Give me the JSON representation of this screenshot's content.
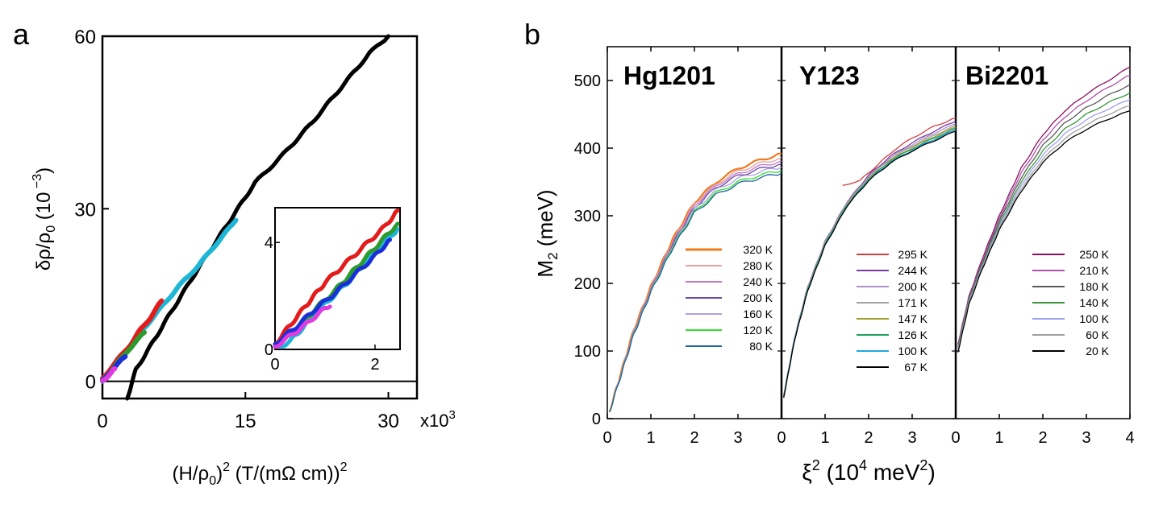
{
  "figure": {
    "panel_a_label": "a",
    "panel_b_label": "b"
  },
  "chart_data": [
    {
      "id": "a",
      "type": "scatter",
      "title": "",
      "xlabel_parts": {
        "pre": "(H/ρ",
        "sub": "0",
        "mid": ")",
        "sup": "2",
        "post": " (T/(mΩ cm))",
        "sup2": "2"
      },
      "ylabel_parts": {
        "pre": "δρ/ρ",
        "sub": "0",
        "post": " (10",
        "sup": " −3",
        "end": ")"
      },
      "x_multiplier": "x10",
      "x_multiplier_sup": "3",
      "xlim": [
        0,
        33
      ],
      "ylim": [
        -3,
        60
      ],
      "xticks": [
        0,
        15,
        30
      ],
      "xtick_labels": [
        "0",
        "15",
        "30"
      ],
      "yticks": [
        0,
        30,
        60
      ],
      "ytick_labels": [
        "0",
        "30",
        "60"
      ],
      "zero_line": 0,
      "series": [
        {
          "name": "black",
          "color": "#000000",
          "x": [
            2.6,
            3.5,
            5,
            7,
            10,
            13,
            16,
            19,
            22,
            25,
            28,
            30
          ],
          "y": [
            -3,
            2,
            6,
            11.5,
            19.5,
            27,
            34.5,
            39.5,
            45,
            51,
            57,
            60
          ]
        },
        {
          "name": "cyan",
          "color": "#1fb6d6",
          "x": [
            0,
            2,
            4,
            6,
            8,
            10,
            12,
            14
          ],
          "y": [
            0,
            4.5,
            8.5,
            12.5,
            16.5,
            20,
            24,
            28
          ]
        },
        {
          "name": "red",
          "color": "#e21b1b",
          "x": [
            0,
            1,
            2,
            3,
            4,
            5,
            6.2
          ],
          "y": [
            0.5,
            2.5,
            4.5,
            6.5,
            9,
            11,
            14
          ]
        },
        {
          "name": "green",
          "color": "#2d9a2d",
          "x": [
            0,
            1,
            2,
            3,
            4.4
          ],
          "y": [
            0.3,
            2,
            4,
            6,
            8.5
          ]
        },
        {
          "name": "blue",
          "color": "#1a2fd8",
          "x": [
            0,
            0.8,
            1.6,
            2.4
          ],
          "y": [
            0.2,
            1.6,
            3,
            4.3
          ]
        },
        {
          "name": "magenta",
          "color": "#e03ae0",
          "x": [
            0,
            0.5,
            1,
            1.3
          ],
          "y": [
            0.1,
            0.8,
            1.6,
            2.2
          ]
        }
      ],
      "inset": {
        "xlim": [
          0,
          2.5
        ],
        "ylim": [
          0,
          5.3
        ],
        "xticks": [
          0,
          2
        ],
        "xtick_labels": [
          "0",
          "2"
        ],
        "yticks": [
          0,
          4
        ],
        "ytick_labels": [
          "0",
          "4"
        ],
        "series": [
          {
            "name": "cyan",
            "color": "#1fb6d6",
            "x": [
              0.1,
              0.3,
              0.6,
              1.0,
              1.4,
              1.8,
              2.2,
              2.45
            ],
            "y": [
              0.1,
              0.3,
              0.9,
              1.7,
              2.4,
              3.2,
              4.0,
              4.5
            ]
          },
          {
            "name": "red",
            "color": "#e21b1b",
            "x": [
              0,
              0.3,
              0.6,
              1.0,
              1.4,
              1.8,
              2.2,
              2.45
            ],
            "y": [
              0.2,
              0.9,
              1.6,
              2.5,
              3.2,
              3.9,
              4.6,
              5.2
            ]
          },
          {
            "name": "green",
            "color": "#2d9a2d",
            "x": [
              0,
              0.4,
              0.8,
              1.2,
              1.6,
              2.0,
              2.45
            ],
            "y": [
              0.1,
              0.7,
              1.5,
              2.2,
              3.0,
              3.8,
              4.7
            ]
          },
          {
            "name": "blue",
            "color": "#1a2fd8",
            "x": [
              0,
              0.4,
              0.8,
              1.2,
              1.6,
              2.0,
              2.3
            ],
            "y": [
              0.2,
              0.8,
              1.5,
              2.1,
              2.8,
              3.5,
              4.1
            ]
          },
          {
            "name": "magenta",
            "color": "#e03ae0",
            "x": [
              0,
              0.3,
              0.6,
              0.9,
              1.1
            ],
            "y": [
              0.1,
              0.5,
              0.9,
              1.4,
              1.6
            ]
          }
        ]
      }
    },
    {
      "id": "b",
      "type": "line",
      "ylabel_parts": {
        "pre": "M",
        "sub": "2",
        "post": " (meV)"
      },
      "xlabel_parts": {
        "pre": "ξ",
        "sup": "2",
        "mid": " (10",
        "sup2": "4",
        "post": " meV",
        "sup3": "2",
        "end": ")"
      },
      "ylim": [
        0,
        550
      ],
      "yticks": [
        0,
        100,
        200,
        300,
        400,
        500
      ],
      "ytick_labels": [
        "0",
        "100",
        "200",
        "300",
        "400",
        "500"
      ],
      "xlim": [
        0,
        4
      ],
      "panels": [
        {
          "name": "Hg1201",
          "xticks": [
            0,
            1,
            2,
            3
          ],
          "xtick_labels": [
            "0",
            "1",
            "2",
            "3"
          ],
          "series": [
            {
              "name": "320 K",
              "color": "#f07a1e",
              "x": [
                0.05,
                0.3,
                0.6,
                1.0,
                1.5,
                2.0,
                2.5,
                3.0,
                3.5,
                4.0
              ],
              "y": [
                10,
                65,
                130,
                195,
                265,
                320,
                350,
                370,
                382,
                392
              ]
            },
            {
              "name": "280 K",
              "color": "#e6a0a0",
              "x": [
                0.05,
                0.3,
                0.6,
                1.0,
                1.5,
                2.0,
                2.5,
                3.0,
                3.5,
                4.0
              ],
              "y": [
                10,
                64,
                128,
                193,
                262,
                318,
                347,
                366,
                377,
                386
              ]
            },
            {
              "name": "240 K",
              "color": "#c478c4",
              "x": [
                0.05,
                0.3,
                0.6,
                1.0,
                1.5,
                2.0,
                2.5,
                3.0,
                3.5,
                4.0
              ],
              "y": [
                10,
                63,
                127,
                192,
                260,
                315,
                345,
                362,
                373,
                381
              ]
            },
            {
              "name": "200 K",
              "color": "#6a4aa8",
              "x": [
                0.05,
                0.3,
                0.6,
                1.0,
                1.5,
                2.0,
                2.5,
                3.0,
                3.5,
                4.0
              ],
              "y": [
                10,
                62,
                126,
                190,
                258,
                312,
                342,
                359,
                369,
                377
              ]
            },
            {
              "name": "160 K",
              "color": "#b0a0e0",
              "x": [
                0.05,
                0.3,
                0.6,
                1.0,
                1.5,
                2.0,
                2.5,
                3.0,
                3.5,
                4.0
              ],
              "y": [
                10,
                62,
                125,
                189,
                256,
                309,
                338,
                355,
                365,
                372
              ]
            },
            {
              "name": "120 K",
              "color": "#2ee02e",
              "x": [
                0.05,
                0.3,
                0.6,
                1.0,
                1.5,
                2.0,
                2.5,
                3.0,
                3.5,
                4.0
              ],
              "y": [
                10,
                61,
                124,
                188,
                254,
                306,
                334,
                350,
                360,
                367
              ]
            },
            {
              "name": "80 K",
              "color": "#2060a0",
              "x": [
                0.05,
                0.3,
                0.6,
                1.0,
                1.5,
                2.0,
                2.5,
                3.0,
                3.5,
                4.0
              ],
              "y": [
                10,
                61,
                123,
                187,
                252,
                304,
                331,
                347,
                356,
                363
              ]
            }
          ]
        },
        {
          "name": "Y123",
          "xticks": [
            0,
            1,
            2,
            3
          ],
          "xtick_labels": [
            "0",
            "1",
            "2",
            "3"
          ],
          "series": [
            {
              "name": "295 K",
              "color": "#d04040",
              "x": [
                1.4,
                1.8,
                2.2,
                2.6,
                3.0,
                3.5,
                4.0
              ],
              "y": [
                345,
                352,
                375,
                398,
                415,
                432,
                445
              ]
            },
            {
              "name": "244 K",
              "color": "#7a3aa0",
              "x": [
                0.05,
                0.3,
                0.6,
                1.0,
                1.5,
                2.0,
                2.5,
                3.0,
                3.5,
                4.0
              ],
              "y": [
                35,
                120,
                195,
                262,
                320,
                360,
                388,
                408,
                425,
                440
              ]
            },
            {
              "name": "200 K",
              "color": "#b090c8",
              "x": [
                0.05,
                0.3,
                0.6,
                1.0,
                1.5,
                2.0,
                2.5,
                3.0,
                3.5,
                4.0
              ],
              "y": [
                34,
                119,
                194,
                261,
                319,
                358,
                386,
                405,
                422,
                436
              ]
            },
            {
              "name": "171 K",
              "color": "#a0a0a0",
              "x": [
                0.05,
                0.3,
                0.6,
                1.0,
                1.5,
                2.0,
                2.5,
                3.0,
                3.5,
                4.0
              ],
              "y": [
                34,
                118,
                193,
                260,
                318,
                357,
                384,
                403,
                419,
                433
              ]
            },
            {
              "name": "147 K",
              "color": "#a0a030",
              "x": [
                0.05,
                0.3,
                0.6,
                1.0,
                1.5,
                2.0,
                2.5,
                3.0,
                3.5,
                4.0
              ],
              "y": [
                33,
                118,
                192,
                259,
                317,
                355,
                382,
                401,
                417,
                431
              ]
            },
            {
              "name": "126 K",
              "color": "#20a060",
              "x": [
                0.05,
                0.3,
                0.6,
                1.0,
                1.5,
                2.0,
                2.5,
                3.0,
                3.5,
                4.0
              ],
              "y": [
                33,
                117,
                191,
                258,
                316,
                354,
                381,
                399,
                415,
                429
              ]
            },
            {
              "name": "100 K",
              "color": "#20a8e0",
              "x": [
                0.05,
                0.3,
                0.6,
                1.0,
                1.5,
                2.0,
                2.5,
                3.0,
                3.5,
                4.0
              ],
              "y": [
                32,
                117,
                190,
                257,
                315,
                353,
                379,
                397,
                413,
                427
              ]
            },
            {
              "name": "67 K",
              "color": "#000000",
              "x": [
                0.05,
                0.3,
                0.6,
                1.0,
                1.5,
                2.0,
                2.5,
                3.0,
                3.5,
                4.0
              ],
              "y": [
                31,
                116,
                189,
                256,
                314,
                352,
                378,
                396,
                411,
                425
              ]
            }
          ]
        },
        {
          "name": "Bi2201",
          "xticks": [
            0,
            1,
            2,
            3,
            4
          ],
          "xtick_labels": [
            "0",
            "1",
            "2",
            "3",
            "4"
          ],
          "series": [
            {
              "name": "250 K",
              "color": "#8a1060",
              "x": [
                0.05,
                0.3,
                0.6,
                1.0,
                1.5,
                2.0,
                2.5,
                3.0,
                3.5,
                4.0
              ],
              "y": [
                110,
                180,
                235,
                300,
                370,
                420,
                455,
                480,
                500,
                520
              ]
            },
            {
              "name": "210 K",
              "color": "#b050a8",
              "x": [
                0.05,
                0.3,
                0.6,
                1.0,
                1.5,
                2.0,
                2.5,
                3.0,
                3.5,
                4.0
              ],
              "y": [
                108,
                178,
                232,
                296,
                363,
                412,
                446,
                470,
                490,
                508
              ]
            },
            {
              "name": "180 K",
              "color": "#5a5a5a",
              "x": [
                0.05,
                0.3,
                0.6,
                1.0,
                1.5,
                2.0,
                2.5,
                3.0,
                3.5,
                4.0
              ],
              "y": [
                106,
                176,
                229,
                292,
                356,
                404,
                437,
                460,
                478,
                494
              ]
            },
            {
              "name": "140 K",
              "color": "#3a9a3a",
              "x": [
                0.05,
                0.3,
                0.6,
                1.0,
                1.5,
                2.0,
                2.5,
                3.0,
                3.5,
                4.0
              ],
              "y": [
                104,
                174,
                226,
                288,
                350,
                396,
                428,
                450,
                467,
                482
              ]
            },
            {
              "name": "100 K",
              "color": "#a0a0f0",
              "x": [
                0.05,
                0.3,
                0.6,
                1.0,
                1.5,
                2.0,
                2.5,
                3.0,
                3.5,
                4.0
              ],
              "y": [
                102,
                172,
                224,
                285,
                345,
                390,
                421,
                442,
                458,
                472
              ]
            },
            {
              "name": "60 K",
              "color": "#a0a0a0",
              "x": [
                0.05,
                0.3,
                0.6,
                1.0,
                1.5,
                2.0,
                2.5,
                3.0,
                3.5,
                4.0
              ],
              "y": [
                100,
                170,
                222,
                282,
                340,
                384,
                414,
                435,
                450,
                463
              ]
            },
            {
              "name": "20 K",
              "color": "#000000",
              "x": [
                0.05,
                0.3,
                0.6,
                1.0,
                1.5,
                2.0,
                2.5,
                3.0,
                3.5,
                4.0
              ],
              "y": [
                98,
                168,
                220,
                279,
                336,
                379,
                408,
                428,
                443,
                455
              ]
            }
          ]
        }
      ]
    }
  ]
}
